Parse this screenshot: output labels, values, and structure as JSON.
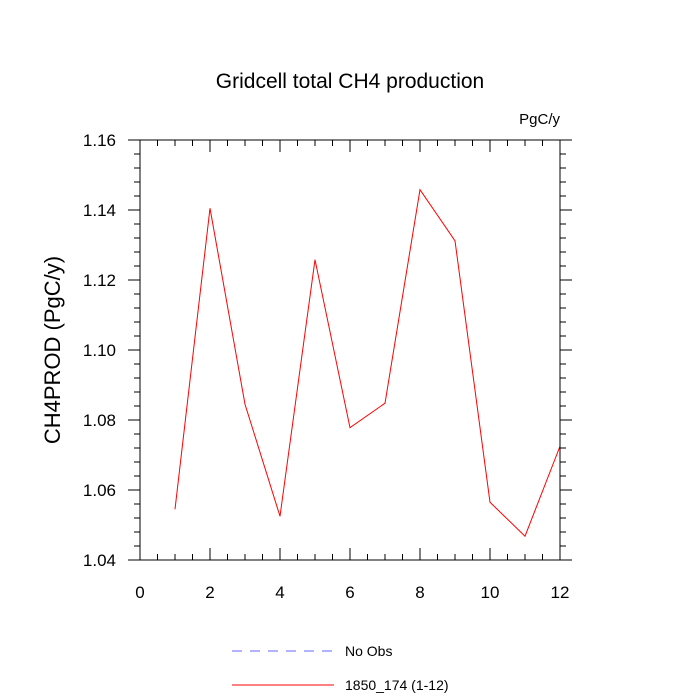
{
  "chart_data": {
    "type": "line",
    "title": "Gridcell total CH4 production",
    "units_label": "PgC/y",
    "ylabel": "CH4PROD  (PgC/y)",
    "xlabel": "",
    "xlim": [
      0,
      12
    ],
    "ylim": [
      1.04,
      1.16
    ],
    "x_ticks": [
      0,
      2,
      4,
      6,
      8,
      10,
      12
    ],
    "x_tick_labels": [
      "0",
      "2",
      "4",
      "6",
      "8",
      "10",
      "12"
    ],
    "y_ticks": [
      1.04,
      1.06,
      1.08,
      1.1,
      1.12,
      1.14,
      1.16
    ],
    "y_tick_labels": [
      "1.04",
      "1.06",
      "1.08",
      "1.10",
      "1.12",
      "1.14",
      "1.16"
    ],
    "grid": false,
    "legend_position": "bottom",
    "series": [
      {
        "name": "1850_174 (1-12)",
        "color": "#ff0000",
        "dash": "solid",
        "x": [
          1,
          2,
          3,
          4,
          5,
          6,
          7,
          8,
          9,
          10,
          11,
          12
        ],
        "y": [
          1.0545,
          1.1405,
          1.0845,
          1.0525,
          1.1258,
          1.0778,
          1.0848,
          1.1458,
          1.1312,
          1.0565,
          1.0468,
          1.0725
        ]
      }
    ],
    "legend": [
      {
        "label": "No Obs",
        "color": "#6666ff",
        "dash": "dashed"
      },
      {
        "label": "1850_174 (1-12)",
        "color": "#ff0000",
        "dash": "solid"
      }
    ]
  }
}
